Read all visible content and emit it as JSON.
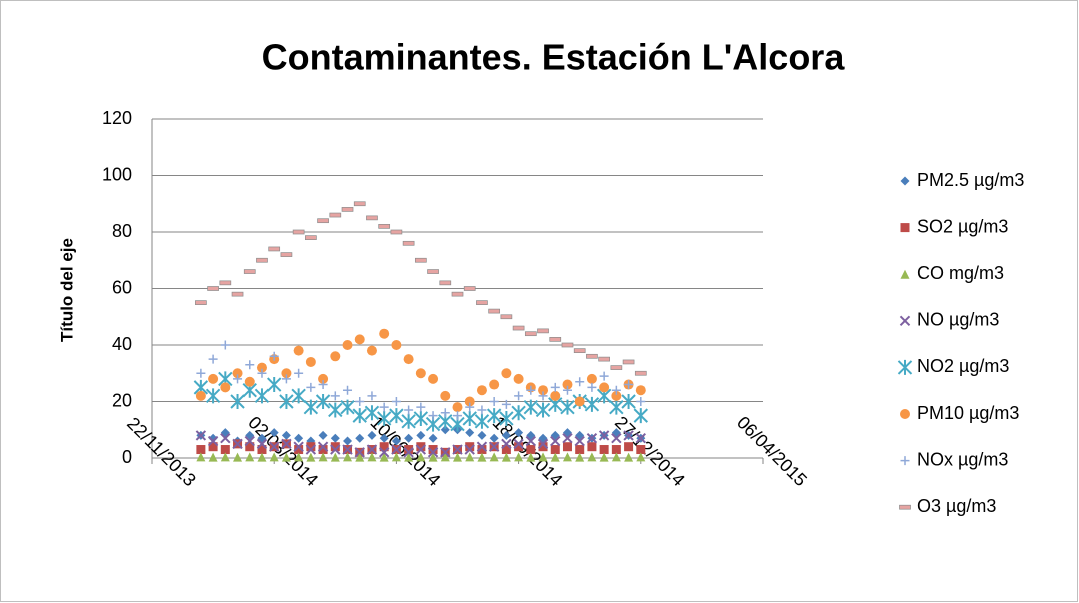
{
  "chart_data": {
    "type": "scatter",
    "title": "Contaminantes. Estación L'Alcora",
    "ylabel": "Título del eje",
    "x": [
      41640,
      41650,
      41660,
      41670,
      41680,
      41690,
      41700,
      41710,
      41720,
      41730,
      41740,
      41750,
      41760,
      41770,
      41780,
      41790,
      41800,
      41810,
      41820,
      41830,
      41840,
      41850,
      41860,
      41870,
      41880,
      41890,
      41900,
      41910,
      41920,
      41930,
      41940,
      41950,
      41960,
      41970,
      41980,
      41990,
      42000
    ],
    "xlim": [
      41600,
      42100
    ],
    "xticks": [
      {
        "value": 41600,
        "label": "22/11/2013"
      },
      {
        "value": 41700,
        "label": "02/03/2014"
      },
      {
        "value": 41800,
        "label": "10/06/2014"
      },
      {
        "value": 41900,
        "label": "18/09/2014"
      },
      {
        "value": 42000,
        "label": "27/12/2014"
      },
      {
        "value": 42100,
        "label": "06/04/2015"
      }
    ],
    "ylim": [
      0,
      120
    ],
    "yticks": [
      0,
      20,
      40,
      60,
      80,
      100,
      120
    ],
    "grid": true,
    "legend": "right",
    "series": [
      {
        "name": "PM2.5 µg/m3",
        "color": "#4a7ebb",
        "marker": "diamond",
        "values": [
          8,
          7,
          9,
          6,
          8,
          7,
          9,
          8,
          7,
          6,
          8,
          7,
          6,
          7,
          8,
          7,
          6,
          7,
          8,
          7,
          10,
          10,
          9,
          8,
          7,
          8,
          9,
          8,
          7,
          8,
          9,
          8,
          7,
          8,
          9,
          8,
          7
        ]
      },
      {
        "name": "SO2 µg/m3",
        "color": "#be4b48",
        "marker": "square",
        "values": [
          3,
          4,
          3,
          5,
          4,
          3,
          4,
          5,
          3,
          4,
          3,
          4,
          3,
          2,
          3,
          4,
          3,
          3,
          4,
          3,
          2,
          3,
          4,
          3,
          4,
          3,
          4,
          3,
          4,
          3,
          4,
          3,
          4,
          3,
          3,
          4,
          3
        ]
      },
      {
        "name": "CO mg/m3",
        "color": "#98b954",
        "marker": "triangle",
        "values": [
          0.4,
          0.3,
          0.4,
          0.3,
          0.4,
          0.3,
          0.4,
          0.3,
          0.4,
          0.3,
          0.4,
          0.3,
          0.4,
          0.3,
          0.4,
          0.3,
          0.4,
          0.3,
          0.4,
          0.3,
          0.4,
          0.3,
          0.4,
          0.3,
          0.4,
          0.3,
          0.4,
          0.3,
          0.4,
          0.3,
          0.4,
          0.3,
          0.4,
          0.3,
          0.4,
          0.3,
          0.4
        ]
      },
      {
        "name": "NO µg/m3",
        "color": "#7d60a0",
        "marker": "x",
        "values": [
          8,
          6,
          7,
          5,
          6,
          5,
          4,
          5,
          4,
          3,
          4,
          3,
          3,
          2,
          3,
          2,
          3,
          2,
          3,
          2,
          2,
          3,
          3,
          4,
          4,
          5,
          5,
          6,
          5,
          6,
          7,
          6,
          7,
          8,
          7,
          8,
          7
        ]
      },
      {
        "name": "NO2 µg/m3",
        "color": "#46aac5",
        "marker": "star",
        "values": [
          25,
          22,
          28,
          20,
          24,
          22,
          26,
          20,
          22,
          18,
          20,
          17,
          18,
          15,
          16,
          14,
          15,
          13,
          14,
          12,
          13,
          12,
          14,
          13,
          15,
          14,
          16,
          18,
          17,
          19,
          18,
          20,
          19,
          22,
          18,
          20,
          15
        ]
      },
      {
        "name": "PM10 µg/m3",
        "color": "#f79646",
        "marker": "circle",
        "values": [
          22,
          28,
          25,
          30,
          27,
          32,
          35,
          30,
          38,
          34,
          28,
          36,
          40,
          42,
          38,
          44,
          40,
          35,
          30,
          28,
          22,
          18,
          20,
          24,
          26,
          30,
          28,
          25,
          24,
          22,
          26,
          20,
          28,
          25,
          22,
          26,
          24
        ]
      },
      {
        "name": "NOx µg/m3",
        "color": "#8fa8d8",
        "marker": "plus",
        "values": [
          30,
          35,
          40,
          28,
          33,
          30,
          36,
          28,
          30,
          25,
          26,
          22,
          24,
          20,
          22,
          18,
          20,
          17,
          18,
          15,
          16,
          15,
          18,
          17,
          20,
          19,
          22,
          24,
          22,
          25,
          24,
          27,
          25,
          29,
          24,
          26,
          20
        ]
      },
      {
        "name": "O3 µg/m3",
        "color": "#e6a4a2",
        "marker": "dash",
        "values": [
          55,
          60,
          62,
          58,
          66,
          70,
          74,
          72,
          80,
          78,
          84,
          86,
          88,
          90,
          85,
          82,
          80,
          76,
          70,
          66,
          62,
          58,
          60,
          55,
          52,
          50,
          46,
          44,
          45,
          42,
          40,
          38,
          36,
          35,
          32,
          34,
          30
        ]
      }
    ]
  }
}
